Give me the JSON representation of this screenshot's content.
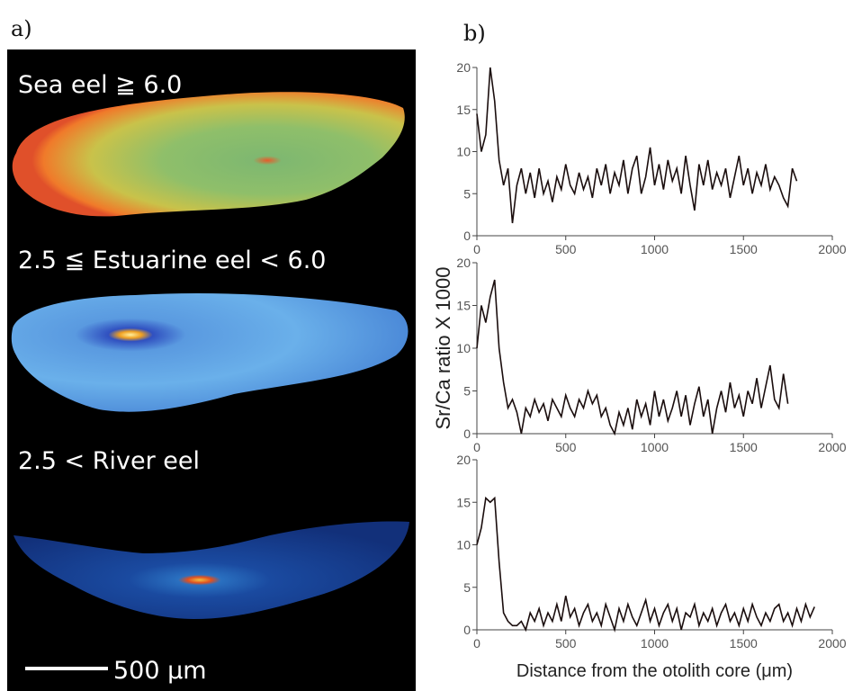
{
  "panel_labels": [
    "a)",
    "b)"
  ],
  "images": {
    "labels": [
      "Sea eel ≧ 6.0",
      "2.5 ≦ Estuarine eel < 6.0",
      "2.5 < River eel"
    ],
    "scale_bar": "500 μm"
  },
  "chart_data": [
    {
      "type": "line",
      "x": [
        0,
        25,
        50,
        75,
        100,
        125,
        150,
        175,
        200,
        225,
        250,
        275,
        300,
        325,
        350,
        375,
        400,
        425,
        450,
        475,
        500,
        525,
        550,
        575,
        600,
        625,
        650,
        675,
        700,
        725,
        750,
        775,
        800,
        825,
        850,
        875,
        900,
        925,
        950,
        975,
        1000,
        1025,
        1050,
        1075,
        1100,
        1125,
        1150,
        1175,
        1200,
        1225,
        1250,
        1275,
        1300,
        1325,
        1350,
        1375,
        1400,
        1425,
        1450,
        1475,
        1500,
        1525,
        1550,
        1575,
        1600,
        1625,
        1650,
        1675,
        1700,
        1725,
        1750,
        1775,
        1800
      ],
      "series": [
        {
          "color": "#1a0d0d",
          "values": [
            14.5,
            10,
            12,
            20,
            16,
            9,
            6,
            8,
            1.5,
            6,
            8,
            5,
            7.5,
            4.5,
            8,
            5,
            6.5,
            4,
            7,
            5.5,
            8.5,
            6,
            5,
            7.5,
            5.5,
            7,
            4.5,
            8,
            6,
            8.5,
            5,
            7.5,
            6,
            9,
            5,
            8,
            9.5,
            5,
            7,
            10.5,
            6,
            8.5,
            5.5,
            9,
            6.5,
            8,
            5,
            9.5,
            6,
            3,
            8.5,
            6,
            9,
            5.5,
            7.5,
            6,
            8,
            4.5,
            7,
            9.5,
            6,
            8,
            5,
            7.5,
            6,
            8.5,
            5.5,
            7,
            6,
            4.5,
            3.5,
            8,
            6.5
          ]
        }
      ],
      "xlim": [
        0,
        2000
      ],
      "xticks": [
        0,
        500,
        1000,
        1500,
        2000
      ],
      "ylim": [
        0,
        20
      ],
      "yticks": [
        0,
        5,
        10,
        15,
        20
      ]
    },
    {
      "type": "line",
      "ylabel": "Sr/Ca ratio X 1000",
      "x": [
        0,
        25,
        50,
        75,
        100,
        125,
        150,
        175,
        200,
        225,
        250,
        275,
        300,
        325,
        350,
        375,
        400,
        425,
        450,
        475,
        500,
        525,
        550,
        575,
        600,
        625,
        650,
        675,
        700,
        725,
        750,
        775,
        800,
        825,
        850,
        875,
        900,
        925,
        950,
        975,
        1000,
        1025,
        1050,
        1075,
        1100,
        1125,
        1150,
        1175,
        1200,
        1225,
        1250,
        1275,
        1300,
        1325,
        1350,
        1375,
        1400,
        1425,
        1450,
        1475,
        1500,
        1525,
        1550,
        1575,
        1600,
        1625,
        1650,
        1675,
        1700,
        1725,
        1750
      ],
      "series": [
        {
          "color": "#1a0d0d",
          "values": [
            10,
            15,
            13,
            16,
            18,
            10,
            6,
            3,
            4,
            2.5,
            0,
            3,
            2,
            4,
            2.5,
            3.5,
            1.5,
            4,
            3,
            2,
            4.5,
            3,
            2,
            4,
            3,
            5,
            3.5,
            4.5,
            2,
            3,
            1,
            0,
            2.5,
            1,
            3,
            0.5,
            4,
            2,
            3.5,
            1,
            5,
            2,
            4,
            1.5,
            3,
            5,
            2,
            4.5,
            1,
            3.5,
            5.5,
            2,
            4,
            0,
            3,
            5,
            2.5,
            6,
            3,
            4.5,
            2,
            5,
            3.5,
            6.5,
            3,
            5.5,
            8,
            4,
            3,
            7,
            3.5
          ]
        }
      ],
      "xlim": [
        0,
        2000
      ],
      "xticks": [
        0,
        500,
        1000,
        1500,
        2000
      ],
      "ylim": [
        0,
        20
      ],
      "yticks": [
        0,
        5,
        10,
        15,
        20
      ]
    },
    {
      "type": "line",
      "xlabel": "Distance from the otolith core (μm)",
      "x": [
        0,
        25,
        50,
        75,
        100,
        125,
        150,
        175,
        200,
        225,
        250,
        275,
        300,
        325,
        350,
        375,
        400,
        425,
        450,
        475,
        500,
        525,
        550,
        575,
        600,
        625,
        650,
        675,
        700,
        725,
        750,
        775,
        800,
        825,
        850,
        875,
        900,
        925,
        950,
        975,
        1000,
        1025,
        1050,
        1075,
        1100,
        1125,
        1150,
        1175,
        1200,
        1225,
        1250,
        1275,
        1300,
        1325,
        1350,
        1375,
        1400,
        1425,
        1450,
        1475,
        1500,
        1525,
        1550,
        1575,
        1600,
        1625,
        1650,
        1675,
        1700,
        1725,
        1750,
        1775,
        1800,
        1825,
        1850,
        1875,
        1900
      ],
      "series": [
        {
          "color": "#1a0d0d",
          "values": [
            10,
            12,
            15.5,
            15,
            15.5,
            8,
            2,
            1,
            0.5,
            0.5,
            1,
            0,
            2,
            1,
            2.5,
            0.5,
            2,
            1,
            3,
            1,
            4,
            1.5,
            2.5,
            0.5,
            2,
            3,
            1,
            2,
            0.5,
            3,
            1.5,
            0,
            2.5,
            1,
            3,
            1.5,
            0.5,
            2,
            3.5,
            1,
            2.5,
            0.5,
            2,
            3,
            1,
            2.5,
            0,
            2,
            1.5,
            3,
            0.5,
            2,
            1,
            2.5,
            0.5,
            2,
            3,
            1,
            2,
            0.5,
            2.5,
            1,
            3,
            1.5,
            0.5,
            2,
            1,
            2.5,
            3,
            1,
            2,
            0.5,
            2.5,
            1,
            3,
            1.5,
            2.7
          ]
        }
      ],
      "xlim": [
        0,
        2000
      ],
      "xticks": [
        0,
        500,
        1000,
        1500,
        2000
      ],
      "ylim": [
        0,
        20
      ],
      "yticks": [
        0,
        5,
        10,
        15,
        20
      ]
    }
  ]
}
